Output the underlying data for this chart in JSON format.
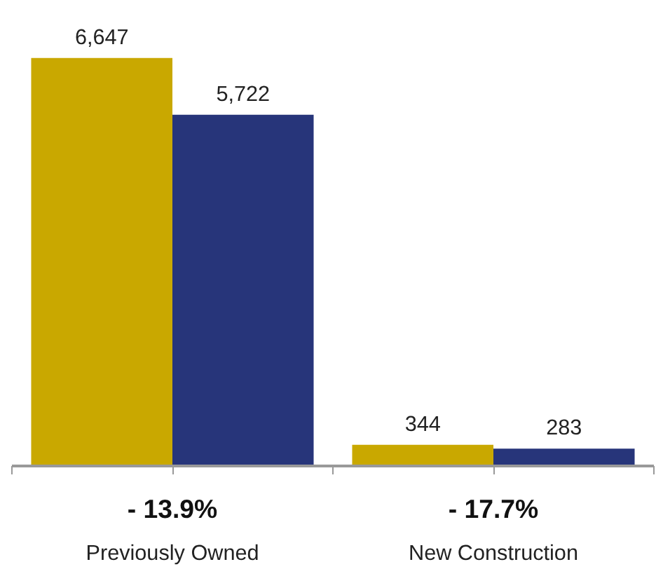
{
  "chart_data": {
    "type": "bar",
    "categories": [
      "Previously Owned",
      "New Construction"
    ],
    "series": [
      {
        "color": "#c9a800",
        "values": [
          6647,
          344
        ],
        "value_labels": [
          "6,647",
          "344"
        ]
      },
      {
        "color": "#27357a",
        "values": [
          5722,
          283
        ],
        "value_labels": [
          "5,722",
          "283"
        ]
      }
    ],
    "grid": false,
    "annotations": [
      "- 13.9%",
      "- 17.7%"
    ]
  }
}
